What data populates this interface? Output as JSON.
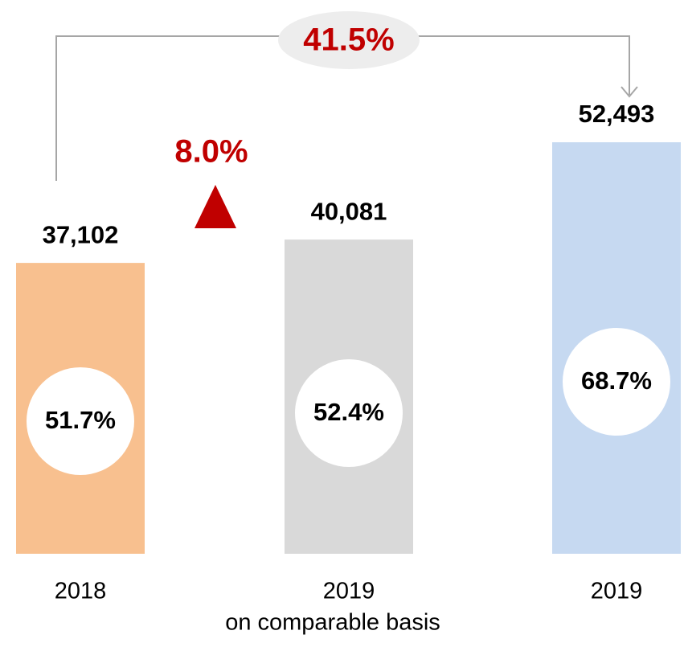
{
  "chart_data": {
    "type": "bar",
    "categories": [
      "2018",
      "2019",
      "2019"
    ],
    "category_sublabels": [
      null,
      "on comparable basis",
      null
    ],
    "values": [
      37102,
      40081,
      52493
    ],
    "value_labels": [
      "37,102",
      "40,081",
      "52,493"
    ],
    "colors": [
      "#f8c08f",
      "#d9d9d9",
      "#c6d9f1"
    ],
    "ratio": {
      "values": [
        51.7,
        52.4,
        68.7
      ],
      "value_labels": [
        "51.7%",
        "52.4%",
        "68.7%"
      ]
    },
    "annotations": [
      "8.0%",
      "41.5%"
    ]
  }
}
